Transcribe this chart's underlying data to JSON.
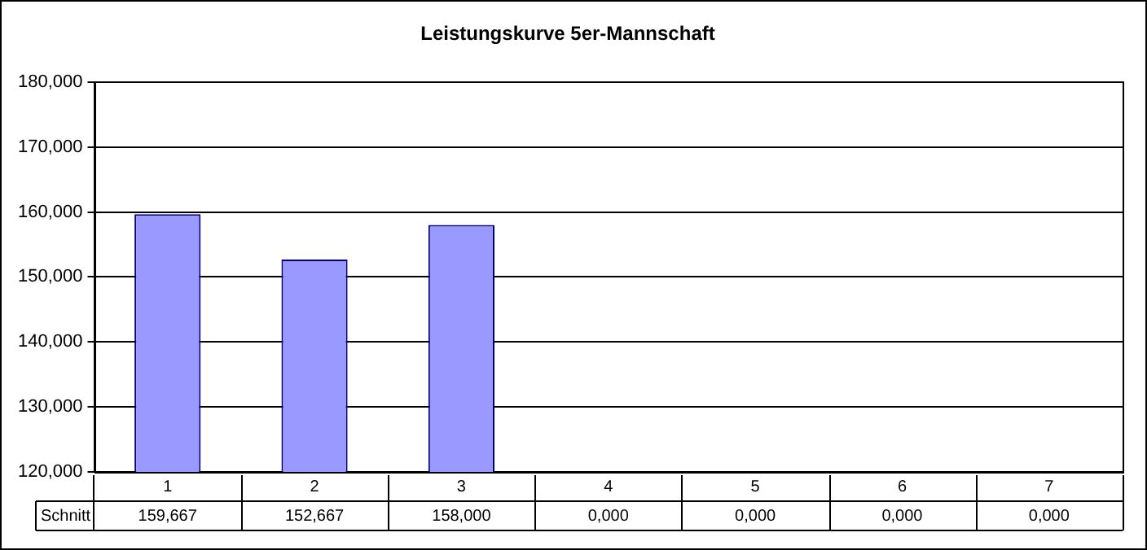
{
  "chart_data": {
    "type": "bar",
    "title": "Leistungskurve 5er-Mannschaft",
    "categories": [
      "1",
      "2",
      "3",
      "4",
      "5",
      "6",
      "7"
    ],
    "series": [
      {
        "name": "Schnitt",
        "color": "#9999ff",
        "values": [
          159.667,
          152.667,
          158.0,
          null,
          null,
          null,
          null
        ],
        "value_labels": [
          "159,667",
          "152,667",
          "158,000",
          "0,000",
          "0,000",
          "0,000",
          "0,000"
        ]
      }
    ],
    "ylim": [
      120,
      180
    ],
    "yticks": [
      {
        "value": 120,
        "label": "120,000"
      },
      {
        "value": 130,
        "label": "130,000"
      },
      {
        "value": 140,
        "label": "140,000"
      },
      {
        "value": 150,
        "label": "150,000"
      },
      {
        "value": 160,
        "label": "160,000"
      },
      {
        "value": 170,
        "label": "170,000"
      },
      {
        "value": 180,
        "label": "180,000"
      }
    ],
    "grid": "y",
    "legend": false
  }
}
